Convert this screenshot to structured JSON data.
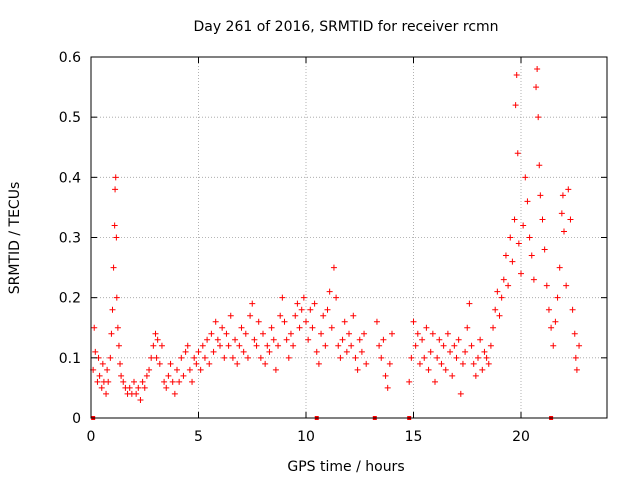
{
  "chart_data": {
    "type": "scatter",
    "title": "Day 261 of 2016, SRMTID for receiver rcmn",
    "xlabel": "GPS time / hours",
    "ylabel": "SRMTID / TECUs",
    "xlim": [
      0,
      24
    ],
    "ylim": [
      0,
      0.6
    ],
    "xticks": [
      0,
      5,
      10,
      15,
      20
    ],
    "xtick_labels": [
      "0",
      "5",
      "10",
      "15",
      "20"
    ],
    "yticks": [
      0,
      0.1,
      0.2,
      0.3,
      0.4,
      0.5,
      0.6
    ],
    "ytick_labels": [
      "0",
      "0.1",
      "0.2",
      "0.3",
      "0.4",
      "0.5",
      "0.6"
    ],
    "grid": true,
    "marker": "+",
    "series": [
      {
        "name": "SRMTID",
        "color": "#ff0000",
        "points": [
          [
            0.1,
            0.08
          ],
          [
            0.15,
            0.15
          ],
          [
            0.2,
            0.11
          ],
          [
            0.3,
            0.06
          ],
          [
            0.35,
            0.1
          ],
          [
            0.4,
            0.07
          ],
          [
            0.5,
            0.05
          ],
          [
            0.55,
            0.09
          ],
          [
            0.6,
            0.06
          ],
          [
            0.7,
            0.04
          ],
          [
            0.75,
            0.08
          ],
          [
            0.8,
            0.06
          ],
          [
            0.9,
            0.1
          ],
          [
            0.95,
            0.14
          ],
          [
            1.0,
            0.18
          ],
          [
            1.05,
            0.25
          ],
          [
            1.1,
            0.32
          ],
          [
            1.12,
            0.38
          ],
          [
            1.15,
            0.4
          ],
          [
            1.18,
            0.3
          ],
          [
            1.2,
            0.2
          ],
          [
            1.25,
            0.15
          ],
          [
            1.3,
            0.12
          ],
          [
            1.35,
            0.09
          ],
          [
            1.4,
            0.07
          ],
          [
            1.5,
            0.06
          ],
          [
            1.6,
            0.05
          ],
          [
            1.7,
            0.04
          ],
          [
            1.8,
            0.05
          ],
          [
            1.9,
            0.04
          ],
          [
            2.0,
            0.06
          ],
          [
            2.1,
            0.04
          ],
          [
            2.2,
            0.05
          ],
          [
            2.3,
            0.03
          ],
          [
            2.4,
            0.06
          ],
          [
            2.5,
            0.05
          ],
          [
            2.6,
            0.07
          ],
          [
            2.7,
            0.08
          ],
          [
            2.8,
            0.1
          ],
          [
            2.9,
            0.12
          ],
          [
            3.0,
            0.14
          ],
          [
            3.05,
            0.1
          ],
          [
            3.1,
            0.13
          ],
          [
            3.2,
            0.09
          ],
          [
            3.3,
            0.12
          ],
          [
            3.4,
            0.06
          ],
          [
            3.5,
            0.05
          ],
          [
            3.6,
            0.07
          ],
          [
            3.7,
            0.09
          ],
          [
            3.8,
            0.06
          ],
          [
            3.9,
            0.04
          ],
          [
            4.0,
            0.08
          ],
          [
            4.1,
            0.06
          ],
          [
            4.2,
            0.1
          ],
          [
            4.3,
            0.07
          ],
          [
            4.4,
            0.11
          ],
          [
            4.5,
            0.12
          ],
          [
            4.6,
            0.08
          ],
          [
            4.7,
            0.06
          ],
          [
            4.8,
            0.1
          ],
          [
            4.9,
            0.09
          ],
          [
            5.0,
            0.11
          ],
          [
            5.1,
            0.08
          ],
          [
            5.2,
            0.12
          ],
          [
            5.3,
            0.1
          ],
          [
            5.4,
            0.13
          ],
          [
            5.5,
            0.09
          ],
          [
            5.6,
            0.14
          ],
          [
            5.7,
            0.11
          ],
          [
            5.8,
            0.16
          ],
          [
            5.9,
            0.13
          ],
          [
            6.0,
            0.12
          ],
          [
            6.1,
            0.15
          ],
          [
            6.2,
            0.1
          ],
          [
            6.3,
            0.14
          ],
          [
            6.4,
            0.12
          ],
          [
            6.5,
            0.17
          ],
          [
            6.6,
            0.1
          ],
          [
            6.7,
            0.13
          ],
          [
            6.8,
            0.09
          ],
          [
            6.9,
            0.12
          ],
          [
            7.0,
            0.15
          ],
          [
            7.1,
            0.11
          ],
          [
            7.2,
            0.14
          ],
          [
            7.3,
            0.1
          ],
          [
            7.4,
            0.17
          ],
          [
            7.5,
            0.19
          ],
          [
            7.6,
            0.13
          ],
          [
            7.7,
            0.12
          ],
          [
            7.8,
            0.16
          ],
          [
            7.9,
            0.1
          ],
          [
            8.0,
            0.14
          ],
          [
            8.1,
            0.09
          ],
          [
            8.2,
            0.12
          ],
          [
            8.3,
            0.11
          ],
          [
            8.4,
            0.15
          ],
          [
            8.5,
            0.13
          ],
          [
            8.6,
            0.08
          ],
          [
            8.7,
            0.12
          ],
          [
            8.8,
            0.17
          ],
          [
            8.9,
            0.2
          ],
          [
            9.0,
            0.16
          ],
          [
            9.1,
            0.13
          ],
          [
            9.2,
            0.1
          ],
          [
            9.3,
            0.14
          ],
          [
            9.4,
            0.12
          ],
          [
            9.5,
            0.17
          ],
          [
            9.6,
            0.19
          ],
          [
            9.7,
            0.15
          ],
          [
            9.8,
            0.18
          ],
          [
            9.9,
            0.2
          ],
          [
            10.0,
            0.16
          ],
          [
            10.1,
            0.13
          ],
          [
            10.2,
            0.18
          ],
          [
            10.3,
            0.15
          ],
          [
            10.4,
            0.19
          ],
          [
            10.5,
            0.11
          ],
          [
            10.6,
            0.09
          ],
          [
            10.7,
            0.14
          ],
          [
            10.8,
            0.17
          ],
          [
            10.9,
            0.12
          ],
          [
            11.0,
            0.18
          ],
          [
            11.1,
            0.21
          ],
          [
            11.2,
            0.15
          ],
          [
            11.3,
            0.25
          ],
          [
            11.4,
            0.2
          ],
          [
            11.5,
            0.12
          ],
          [
            11.6,
            0.1
          ],
          [
            11.7,
            0.13
          ],
          [
            11.8,
            0.16
          ],
          [
            11.9,
            0.11
          ],
          [
            12.0,
            0.14
          ],
          [
            12.1,
            0.12
          ],
          [
            12.2,
            0.17
          ],
          [
            12.3,
            0.1
          ],
          [
            12.4,
            0.08
          ],
          [
            12.5,
            0.13
          ],
          [
            12.6,
            0.11
          ],
          [
            12.7,
            0.14
          ],
          [
            12.8,
            0.09
          ],
          [
            13.3,
            0.16
          ],
          [
            13.4,
            0.12
          ],
          [
            13.5,
            0.1
          ],
          [
            13.6,
            0.13
          ],
          [
            13.7,
            0.07
          ],
          [
            13.8,
            0.05
          ],
          [
            13.9,
            0.09
          ],
          [
            14.0,
            0.14
          ],
          [
            14.8,
            0.06
          ],
          [
            14.9,
            0.1
          ],
          [
            15.0,
            0.16
          ],
          [
            15.1,
            0.12
          ],
          [
            15.2,
            0.14
          ],
          [
            15.3,
            0.09
          ],
          [
            15.4,
            0.13
          ],
          [
            15.5,
            0.1
          ],
          [
            15.6,
            0.15
          ],
          [
            15.7,
            0.08
          ],
          [
            15.8,
            0.11
          ],
          [
            15.9,
            0.14
          ],
          [
            16.0,
            0.06
          ],
          [
            16.1,
            0.1
          ],
          [
            16.2,
            0.13
          ],
          [
            16.3,
            0.09
          ],
          [
            16.4,
            0.12
          ],
          [
            16.5,
            0.08
          ],
          [
            16.6,
            0.14
          ],
          [
            16.7,
            0.11
          ],
          [
            16.8,
            0.07
          ],
          [
            16.9,
            0.12
          ],
          [
            17.0,
            0.1
          ],
          [
            17.1,
            0.13
          ],
          [
            17.2,
            0.04
          ],
          [
            17.3,
            0.09
          ],
          [
            17.4,
            0.11
          ],
          [
            17.5,
            0.15
          ],
          [
            17.6,
            0.19
          ],
          [
            17.7,
            0.12
          ],
          [
            17.8,
            0.09
          ],
          [
            17.9,
            0.07
          ],
          [
            18.0,
            0.1
          ],
          [
            18.1,
            0.13
          ],
          [
            18.2,
            0.08
          ],
          [
            18.3,
            0.11
          ],
          [
            18.4,
            0.1
          ],
          [
            18.5,
            0.09
          ],
          [
            18.6,
            0.12
          ],
          [
            18.7,
            0.15
          ],
          [
            18.8,
            0.18
          ],
          [
            18.9,
            0.21
          ],
          [
            19.0,
            0.17
          ],
          [
            19.1,
            0.2
          ],
          [
            19.2,
            0.23
          ],
          [
            19.3,
            0.27
          ],
          [
            19.4,
            0.22
          ],
          [
            19.5,
            0.3
          ],
          [
            19.6,
            0.26
          ],
          [
            19.7,
            0.33
          ],
          [
            19.75,
            0.52
          ],
          [
            19.8,
            0.57
          ],
          [
            19.85,
            0.44
          ],
          [
            19.9,
            0.29
          ],
          [
            20.0,
            0.24
          ],
          [
            20.1,
            0.32
          ],
          [
            20.2,
            0.4
          ],
          [
            20.3,
            0.36
          ],
          [
            20.4,
            0.3
          ],
          [
            20.5,
            0.27
          ],
          [
            20.6,
            0.23
          ],
          [
            20.7,
            0.55
          ],
          [
            20.75,
            0.58
          ],
          [
            20.8,
            0.5
          ],
          [
            20.85,
            0.42
          ],
          [
            20.9,
            0.37
          ],
          [
            21.0,
            0.33
          ],
          [
            21.1,
            0.28
          ],
          [
            21.2,
            0.22
          ],
          [
            21.3,
            0.18
          ],
          [
            21.4,
            0.15
          ],
          [
            21.5,
            0.12
          ],
          [
            21.6,
            0.16
          ],
          [
            21.7,
            0.2
          ],
          [
            21.8,
            0.25
          ],
          [
            21.9,
            0.34
          ],
          [
            21.95,
            0.37
          ],
          [
            22.0,
            0.31
          ],
          [
            22.1,
            0.22
          ],
          [
            22.2,
            0.38
          ],
          [
            22.3,
            0.33
          ],
          [
            22.4,
            0.18
          ],
          [
            22.5,
            0.14
          ],
          [
            22.55,
            0.1
          ],
          [
            22.6,
            0.08
          ],
          [
            22.7,
            0.12
          ]
        ]
      }
    ],
    "gap_markers_x": [
      0.1,
      10.5,
      13.2,
      14.8,
      21.4
    ]
  }
}
